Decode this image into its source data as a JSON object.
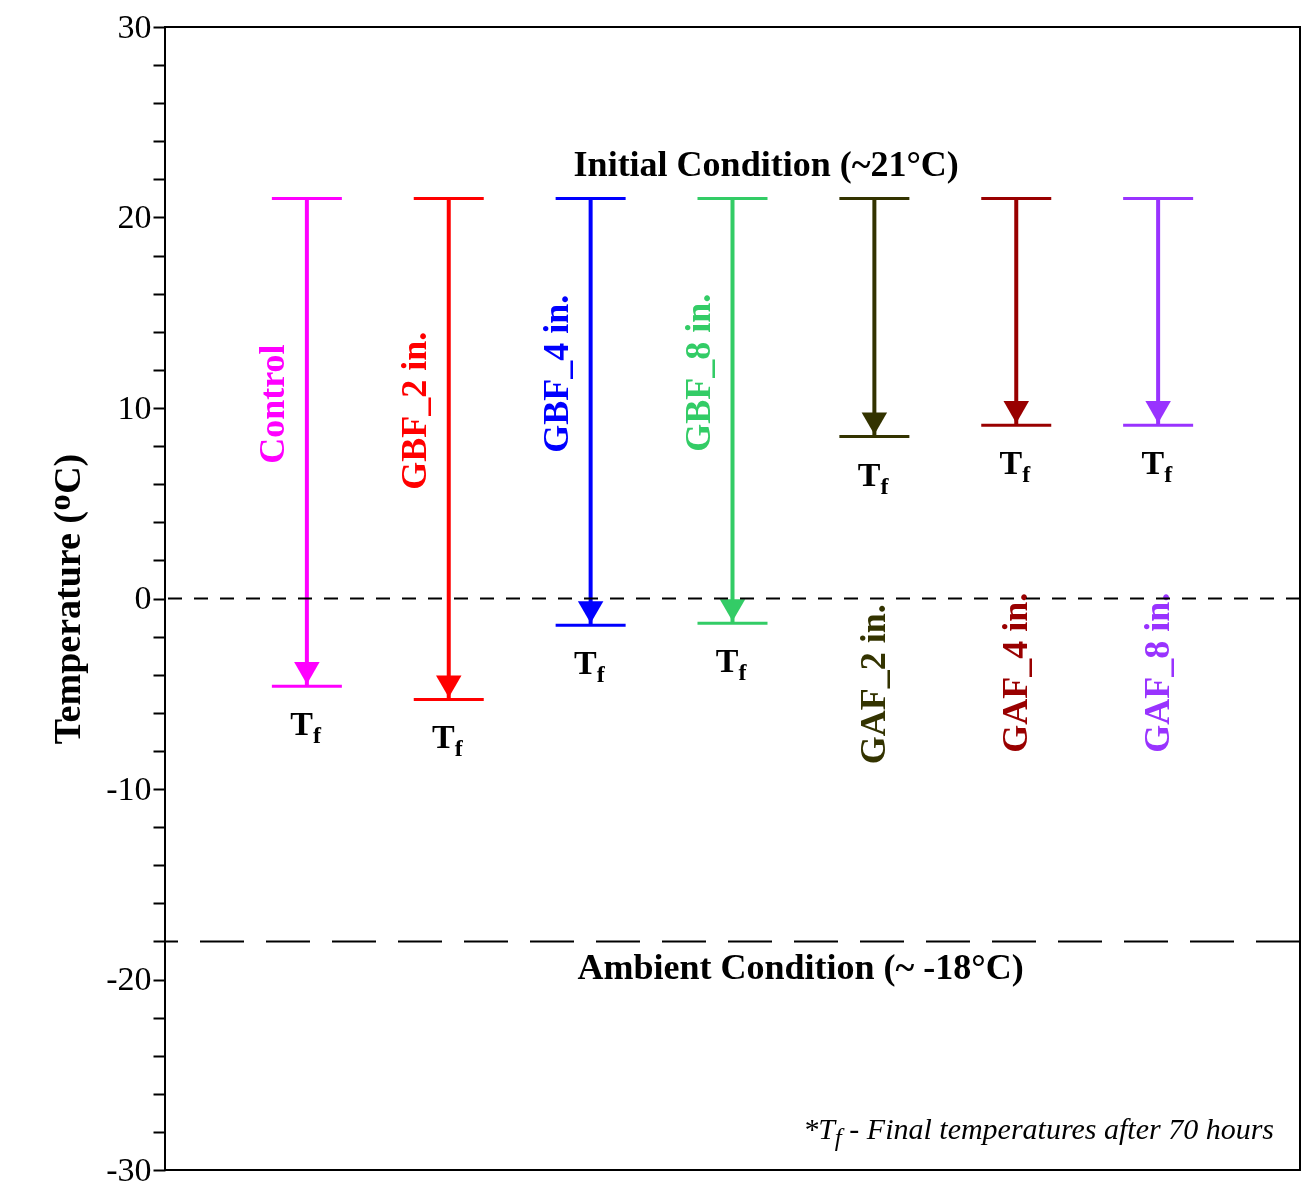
{
  "chart_data": {
    "type": "bar",
    "ylabel": "Temperature (ᴼC)",
    "categories": [
      "Control",
      "GBF_2 in.",
      "GBF_4 in.",
      "GBF_8 in.",
      "GAF_2 in.",
      "GAF_4 in.",
      "GAF_8 in."
    ],
    "base": [
      -4.6,
      -5.3,
      -1.4,
      -1.3,
      8.5,
      9.1,
      9.1
    ],
    "values": [
      25.6,
      26.3,
      22.4,
      22.3,
      12.5,
      11.9,
      11.9
    ],
    "colors": [
      "#ff00ff",
      "#ff0000",
      "#0000ff",
      "#33cc66",
      "#333300",
      "#990000",
      "#9933ff"
    ],
    "value_labels": [
      "T$_{f}$",
      "T$_{f}$",
      "T$_{f}$",
      "T$_{f}$",
      "T$_{f}$",
      "T$_{f}$",
      "T$_{f}$"
    ],
    "ylim": [
      -30,
      30
    ],
    "yticks": [
      -30,
      {
        "value": -28,
        "label": null
      },
      {
        "value": -26,
        "label": null
      },
      {
        "value": -24,
        "label": null
      },
      {
        "value": -22,
        "label": null
      },
      -20,
      {
        "value": -18,
        "label": null
      },
      {
        "value": -16,
        "label": null
      },
      {
        "value": -14,
        "label": null
      },
      {
        "value": -12,
        "label": null
      },
      -10,
      {
        "value": -8,
        "label": null
      },
      {
        "value": -6,
        "label": null
      },
      {
        "value": -4,
        "label": null
      },
      {
        "value": -2,
        "label": null
      },
      0,
      {
        "value": 2,
        "label": null
      },
      {
        "value": 4,
        "label": null
      },
      {
        "value": 6,
        "label": null
      },
      {
        "value": 8,
        "label": null
      },
      10,
      {
        "value": 12,
        "label": null
      },
      {
        "value": 14,
        "label": null
      },
      {
        "value": 16,
        "label": null
      },
      {
        "value": 18,
        "label": null
      },
      20,
      {
        "value": 22,
        "label": null
      },
      {
        "value": 24,
        "label": null
      },
      {
        "value": 26,
        "label": null
      },
      {
        "value": 28,
        "label": null
      },
      30
    ],
    "tick_labels": "y",
    "grid": false,
    "legend": false,
    "ref_lines": [
      {
        "axis": "y",
        "value": 0,
        "label": null,
        "color": "#000000",
        "line_style": "dashed"
      },
      {
        "axis": "y",
        "value": -18,
        "label": "Ambient Condition (~ -18°C)",
        "color": "#000000",
        "line_style": "dashed"
      }
    ],
    "annotations": [
      "Initial Condition (~21°C)",
      "*T$_{f}$ - Final temperatures after 70 hours"
    ]
  }
}
